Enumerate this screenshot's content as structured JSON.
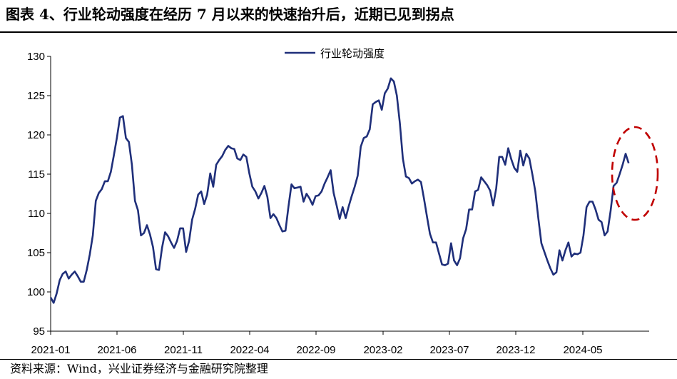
{
  "title": "图表 4、行业轮动强度在经历 7 月以来的快速抬升后，近期已见到拐点",
  "source": "资料来源：Wind，兴业证券经济与金融研究院整理",
  "colors": {
    "line": "#1f2f7a",
    "annotation": "#c00000"
  },
  "chart_data": {
    "type": "line",
    "title": "",
    "xlabel": "",
    "ylabel": "",
    "ylim": [
      95,
      130
    ],
    "yticks": [
      95,
      100,
      105,
      110,
      115,
      120,
      125,
      130
    ],
    "xtick_labels": [
      "2021-01",
      "2021-06",
      "2021-11",
      "2022-04",
      "2022-09",
      "2023-02",
      "2023-07",
      "2023-12",
      "2024-05"
    ],
    "grid": false,
    "legend_position": "top-center",
    "annotation": "dashed red ellipse around latest turning point",
    "series": [
      {
        "name": "行业轮动强度",
        "values": [
          99.3,
          98.6,
          99.8,
          101.5,
          102.3,
          102.6,
          101.7,
          102.2,
          102.6,
          102.0,
          101.3,
          101.3,
          102.8,
          104.8,
          107.2,
          111.6,
          112.6,
          113.1,
          114.1,
          114.1,
          115.3,
          117.4,
          119.6,
          122.2,
          122.4,
          119.6,
          119.1,
          116.2,
          111.6,
          110.4,
          107.2,
          107.5,
          108.5,
          107.3,
          105.7,
          102.9,
          102.8,
          105.6,
          107.6,
          107.1,
          106.3,
          105.6,
          106.5,
          108.1,
          108.1,
          105.1,
          106.5,
          109.2,
          110.6,
          112.4,
          112.8,
          111.2,
          112.4,
          115.1,
          113.4,
          116.2,
          116.8,
          117.3,
          118.1,
          118.6,
          118.3,
          118.2,
          117.0,
          116.8,
          117.5,
          117.2,
          115.1,
          113.4,
          112.8,
          111.9,
          112.6,
          113.5,
          112.1,
          109.4,
          109.9,
          109.4,
          108.5,
          107.7,
          107.8,
          110.9,
          113.7,
          113.2,
          113.3,
          113.4,
          111.5,
          112.5,
          111.9,
          111.1,
          112.2,
          112.3,
          112.8,
          113.8,
          114.6,
          115.5,
          112.6,
          111.0,
          109.3,
          110.8,
          109.4,
          110.9,
          112.2,
          113.4,
          114.8,
          118.5,
          119.6,
          119.8,
          120.7,
          123.9,
          124.2,
          124.4,
          123.2,
          125.3,
          125.9,
          127.2,
          126.8,
          125.0,
          121.5,
          117.0,
          114.7,
          114.5,
          113.8,
          114.1,
          114.3,
          114.0,
          111.9,
          109.6,
          107.4,
          106.3,
          106.3,
          104.9,
          103.5,
          103.4,
          103.6,
          106.2,
          104.0,
          103.4,
          104.3,
          106.8,
          108.0,
          110.5,
          110.5,
          112.8,
          113.0,
          114.6,
          114.1,
          113.6,
          112.9,
          111.0,
          113.2,
          117.2,
          117.2,
          116.2,
          118.3,
          116.9,
          115.8,
          115.3,
          118.0,
          116.1,
          117.6,
          117.0,
          115.0,
          112.8,
          109.4,
          106.2,
          105.1,
          104.0,
          103.0,
          102.2,
          102.5,
          105.3,
          104.0,
          105.3,
          106.3,
          104.5,
          104.9,
          104.8,
          105.0,
          107.2,
          110.8,
          111.5,
          111.5,
          110.5,
          109.2,
          108.9,
          107.2,
          107.7,
          110.3,
          113.5,
          113.9,
          115.0,
          116.2,
          117.6,
          116.4
        ]
      }
    ]
  }
}
